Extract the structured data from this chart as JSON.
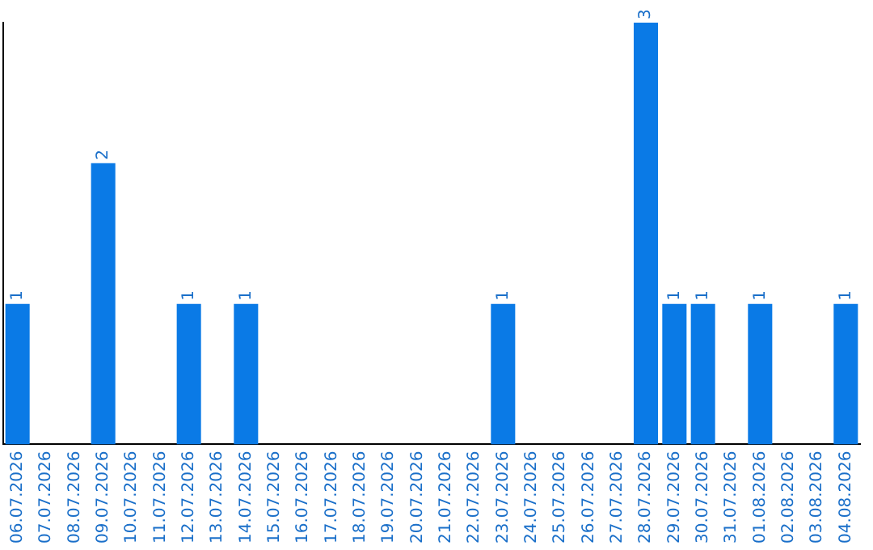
{
  "chart_data": {
    "type": "bar",
    "categories": [
      "06.07.2026",
      "07.07.2026",
      "08.07.2026",
      "09.07.2026",
      "10.07.2026",
      "11.07.2026",
      "12.07.2026",
      "13.07.2026",
      "14.07.2026",
      "15.07.2026",
      "16.07.2026",
      "17.07.2026",
      "18.07.2026",
      "19.07.2026",
      "20.07.2026",
      "21.07.2026",
      "22.07.2026",
      "23.07.2026",
      "24.07.2026",
      "25.07.2026",
      "26.07.2026",
      "27.07.2026",
      "28.07.2026",
      "29.07.2026",
      "30.07.2026",
      "31.07.2026",
      "01.08.2026",
      "02.08.2026",
      "03.08.2026",
      "04.08.2026"
    ],
    "values": [
      1,
      0,
      0,
      2,
      0,
      0,
      1,
      0,
      1,
      0,
      0,
      0,
      0,
      0,
      0,
      0,
      0,
      1,
      0,
      0,
      0,
      0,
      3,
      1,
      1,
      0,
      1,
      0,
      0,
      1
    ],
    "value_labels": [
      "1",
      null,
      null,
      "2",
      null,
      null,
      "1",
      null,
      "1",
      null,
      null,
      null,
      null,
      null,
      null,
      null,
      null,
      "1",
      null,
      null,
      null,
      null,
      "3",
      "1",
      "1",
      null,
      "1",
      null,
      null,
      "1"
    ],
    "color": "#0a7ae6",
    "ylim": [
      0,
      3
    ],
    "tick_labels": "x",
    "grid": false,
    "legend": false
  }
}
